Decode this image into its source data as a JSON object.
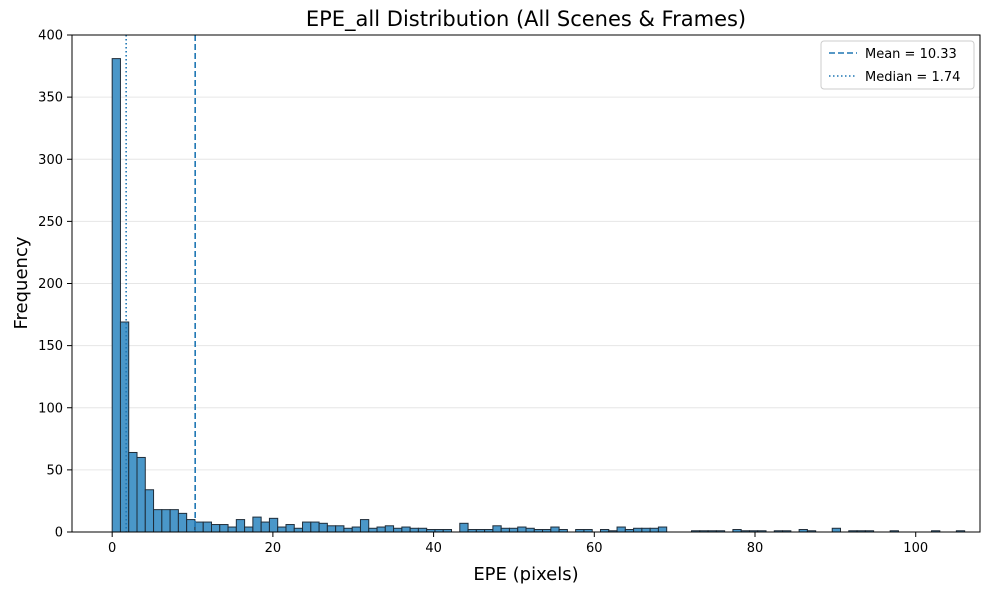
{
  "chart_data": {
    "type": "bar",
    "title": "EPE_all Distribution (All Scenes & Frames)",
    "xlabel": "EPE (pixels)",
    "ylabel": "Frequency",
    "xlim": [
      -5,
      108
    ],
    "ylim": [
      0,
      400
    ],
    "xticks": [
      0,
      20,
      40,
      60,
      80,
      100
    ],
    "yticks": [
      0,
      50,
      100,
      150,
      200,
      250,
      300,
      350,
      400
    ],
    "grid": "y-only",
    "legend_position": "top-right",
    "bin_start": 0,
    "bin_width": 1.03,
    "values": [
      381,
      169,
      64,
      60,
      34,
      18,
      18,
      18,
      15,
      10,
      8,
      8,
      6,
      6,
      4,
      10,
      4,
      12,
      8,
      11,
      4,
      6,
      3,
      8,
      8,
      7,
      5,
      5,
      3,
      4,
      10,
      3,
      4,
      5,
      3,
      4,
      3,
      3,
      2,
      2,
      2,
      0,
      7,
      2,
      2,
      2,
      5,
      3,
      3,
      4,
      3,
      2,
      2,
      4,
      2,
      0,
      2,
      2,
      0,
      2,
      1,
      4,
      2,
      3,
      3,
      3,
      4,
      0,
      0,
      0,
      1,
      1,
      1,
      1,
      0,
      2,
      1,
      1,
      1,
      0,
      1,
      1,
      0,
      2,
      1,
      0,
      0,
      3,
      0,
      1,
      1,
      1,
      0,
      0,
      1,
      0,
      0,
      0,
      0,
      1,
      0,
      0,
      1
    ],
    "reference_lines": [
      {
        "label": "Mean = 10.33",
        "value": 10.33,
        "style": "dashed"
      },
      {
        "label": "Median = 1.74",
        "value": 1.74,
        "style": "dotted"
      }
    ],
    "bar_color": "#4a97c9",
    "bar_edge_color": "#1f2d3a",
    "line_color": "#1f77b4"
  }
}
